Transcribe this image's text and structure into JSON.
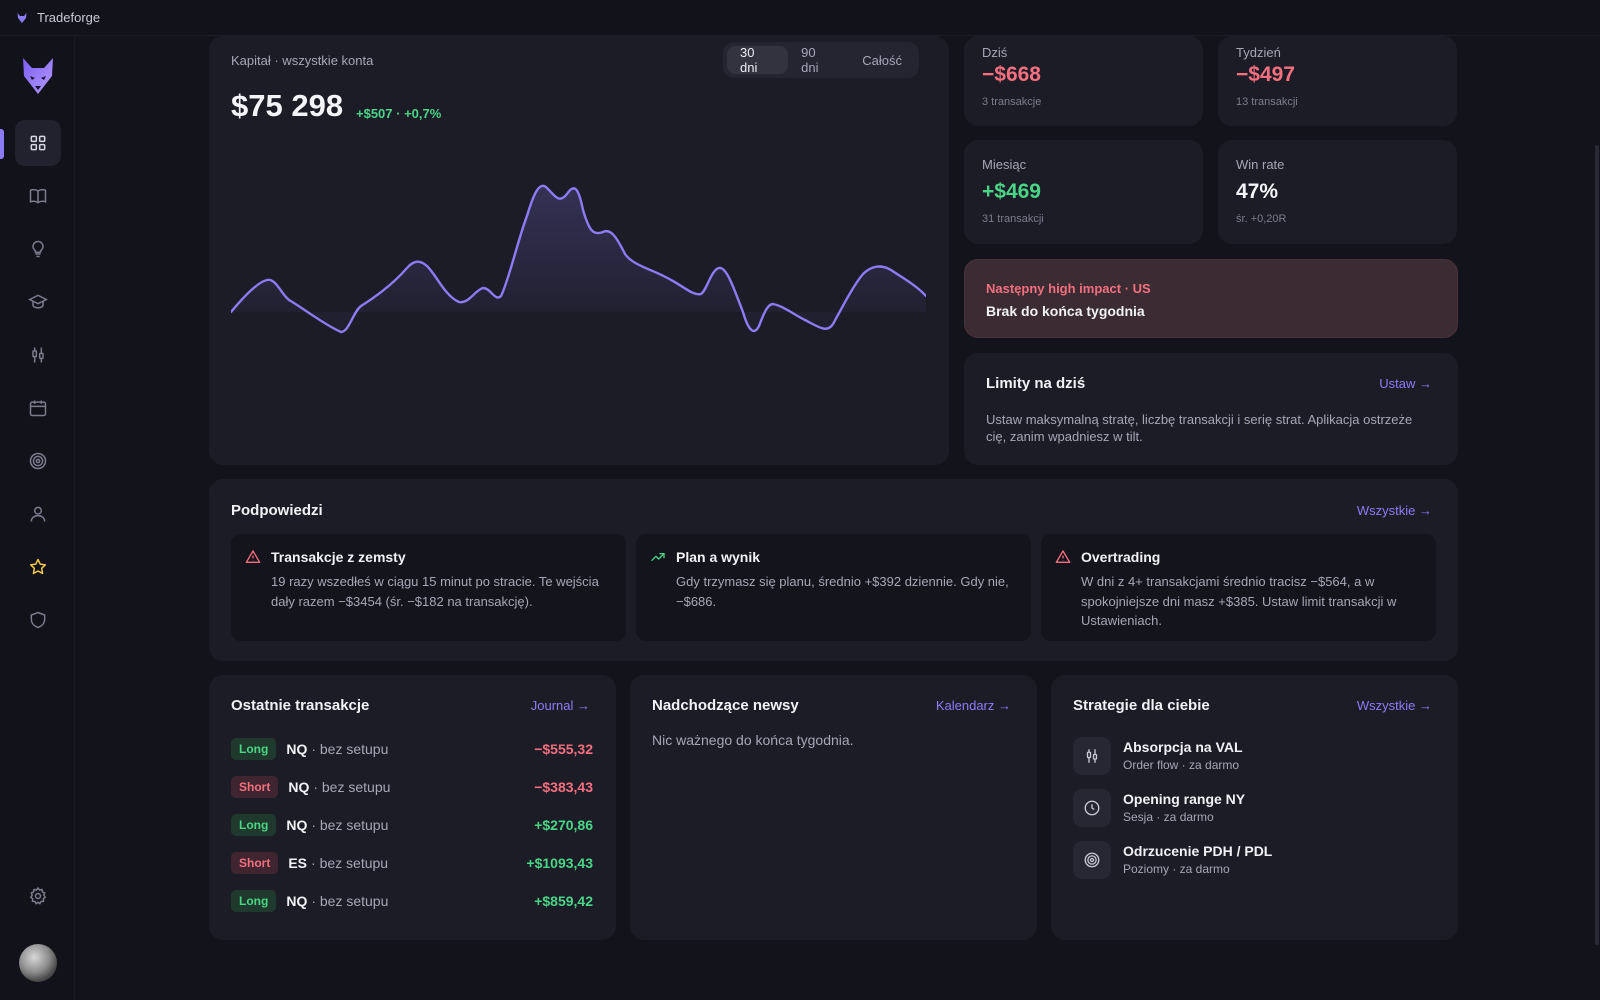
{
  "app": {
    "title": "Tradeforge"
  },
  "capital": {
    "label": "Kapitał · wszystkie konta",
    "ranges": [
      "30 dni",
      "90 dni",
      "Całość"
    ],
    "selected_range": "30 dni",
    "value": "$75 298",
    "change": "+$507 · +0,7%",
    "line_color": "#8b7cf6"
  },
  "stats": [
    {
      "label": "Dziś",
      "value": "−$668",
      "sub": "3 transakcje",
      "tone": "neg"
    },
    {
      "label": "Tydzień",
      "value": "−$497",
      "sub": "13 transakcji",
      "tone": "neg"
    },
    {
      "label": "Miesiąc",
      "value": "+$469",
      "sub": "31 transakcji",
      "tone": "pos"
    },
    {
      "label": "Win rate",
      "value": "47%",
      "sub": "śr. +0,20R",
      "tone": "neutral"
    }
  ],
  "impact": {
    "title": "Następny high impact · US",
    "body": "Brak do końca tygodnia"
  },
  "limits": {
    "title": "Limity na dziś",
    "link": "Ustaw →",
    "text": "Ustaw maksymalną stratę, liczbę transakcji i serię strat. Aplikacja ostrzeże cię, zanim wpadniesz w tilt."
  },
  "tips": {
    "title": "Podpowiedzi",
    "link": "Wszystkie →",
    "items": [
      {
        "icon": "warning-triangle-icon",
        "title": "Transakcje z zemsty",
        "text": "19 razy wszedłeś w ciągu 15 minut po stracie. Te wejścia dały razem −$3454 (śr. −$182 na transakcję)."
      },
      {
        "icon": "trend-up-icon",
        "title": "Plan a wynik",
        "text": "Gdy trzymasz się planu, średnio +$392 dziennie. Gdy nie, −$686."
      },
      {
        "icon": "warning-triangle-icon",
        "title": "Overtrading",
        "text": "W dni z 4+ transakcjami średnio tracisz −$564, a w spokojniejsze dni masz +$385. Ustaw limit transakcji w Ustawieniach."
      }
    ]
  },
  "trades": {
    "title": "Ostatnie transakcje",
    "link": "Journal →",
    "rows": [
      {
        "side": "Long",
        "symbol": "NQ",
        "setup": "· bez setupu",
        "pnl": "−$555,32",
        "tone": "neg"
      },
      {
        "side": "Short",
        "symbol": "NQ",
        "setup": "· bez setupu",
        "pnl": "−$383,43",
        "tone": "neg"
      },
      {
        "side": "Long",
        "symbol": "NQ",
        "setup": "· bez setupu",
        "pnl": "+$270,86",
        "tone": "pos"
      },
      {
        "side": "Short",
        "symbol": "ES",
        "setup": "· bez setupu",
        "pnl": "+$1093,43",
        "tone": "pos"
      },
      {
        "side": "Long",
        "symbol": "NQ",
        "setup": "· bez setupu",
        "pnl": "+$859,42",
        "tone": "pos"
      }
    ]
  },
  "news": {
    "title": "Nadchodzące newsy",
    "link": "Kalendarz →",
    "empty": "Nic ważnego do końca tygodnia."
  },
  "strategies": {
    "title": "Strategie dla ciebie",
    "link": "Wszystkie →",
    "items": [
      {
        "icon": "candles-icon",
        "title": "Absorpcja na VAL",
        "sub": "Order flow · za darmo"
      },
      {
        "icon": "clock-icon",
        "title": "Opening range NY",
        "sub": "Sesja · za darmo"
      },
      {
        "icon": "target-icon",
        "title": "Odrzucenie PDH / PDL",
        "sub": "Poziomy · za darmo"
      }
    ]
  },
  "nav": [
    {
      "name": "dashboard",
      "icon": "grid-icon",
      "active": true
    },
    {
      "name": "journal",
      "icon": "book-icon"
    },
    {
      "name": "ideas",
      "icon": "lightbulb-icon"
    },
    {
      "name": "learn",
      "icon": "graduation-cap-icon"
    },
    {
      "name": "strategies",
      "icon": "candles-icon"
    },
    {
      "name": "calendar",
      "icon": "calendar-icon"
    },
    {
      "name": "goals",
      "icon": "target-icon"
    },
    {
      "name": "profile",
      "icon": "user-icon"
    },
    {
      "name": "favorites",
      "icon": "star-icon"
    },
    {
      "name": "security",
      "icon": "shield-icon"
    },
    {
      "name": "settings",
      "icon": "gear-icon"
    }
  ]
}
